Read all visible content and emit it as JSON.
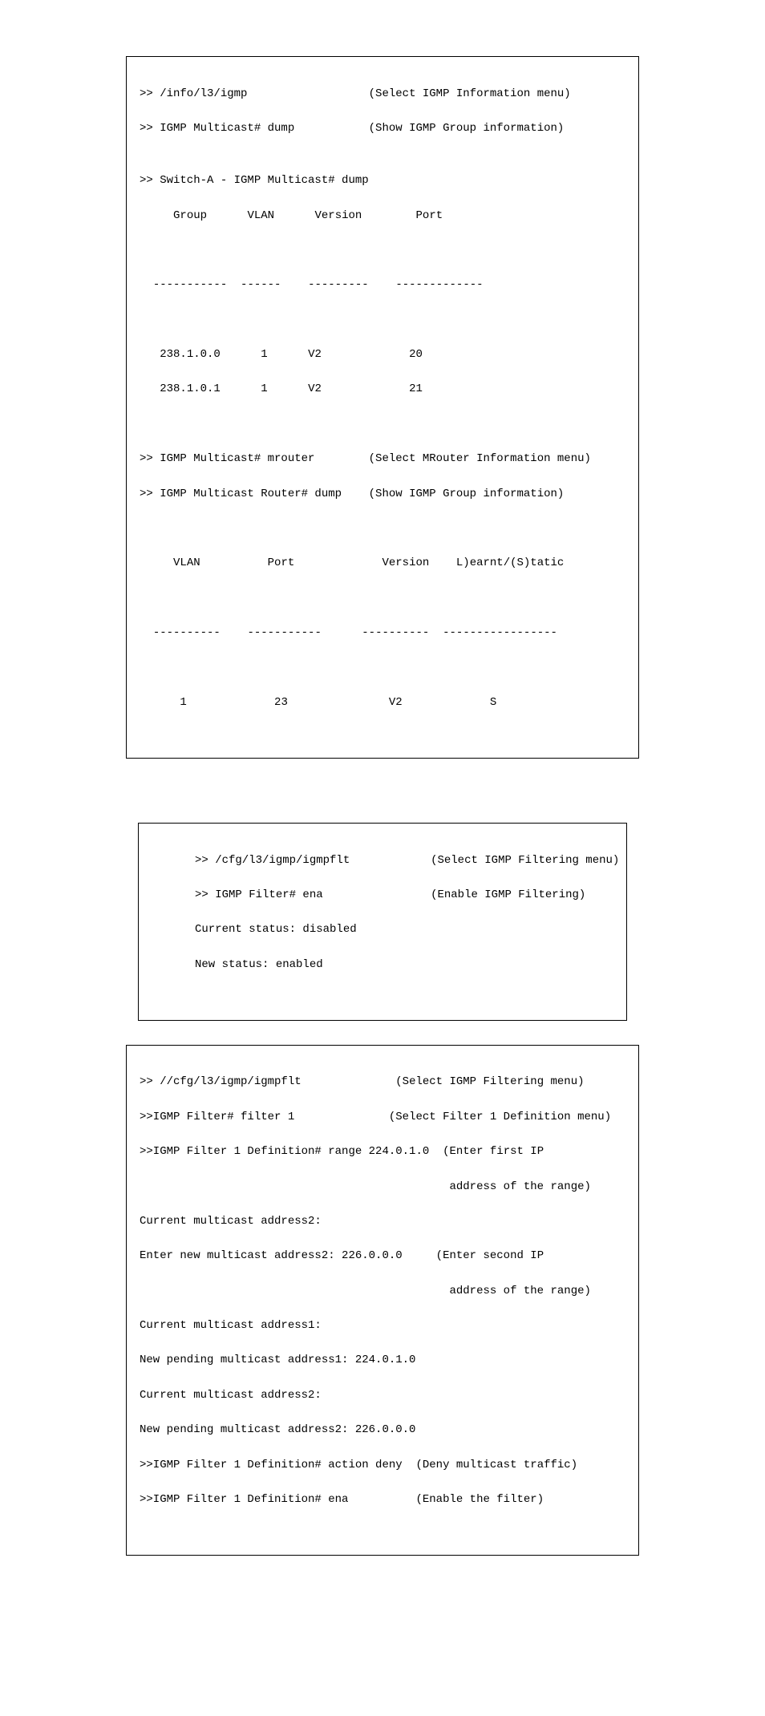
{
  "style": {
    "font_family": "Courier New, monospace",
    "font_size_pt": 11,
    "text_color": "#000000",
    "border_color": "#000000",
    "background_color": "#ffffff"
  },
  "block1": {
    "l1_left": ">> /info/l3/igmp",
    "l1_right": "(Select IGMP Information menu)",
    "l2_left": ">> IGMP Multicast# dump",
    "l2_right": "(Show IGMP Group information)",
    "l3": "",
    "l4": ">> Switch-A - IGMP Multicast# dump",
    "hdr_group": "Group",
    "hdr_vlan": "VLAN",
    "hdr_version": "Version",
    "hdr_port": "Port",
    "sep1_a": "-----------",
    "sep1_b": "------",
    "sep1_c": "---------",
    "sep1_d": "-------------",
    "row1_group": "238.1.0.0",
    "row1_vlan": "1",
    "row1_version": "V2",
    "row1_port": "20",
    "row2_group": "238.1.0.1",
    "row2_vlan": "1",
    "row2_version": "V2",
    "row2_port": "21",
    "l_mrouter_left": ">> IGMP Multicast# mrouter",
    "l_mrouter_right": "(Select MRouter Information menu)",
    "l_router_dump_left": ">> IGMP Multicast Router# dump",
    "l_router_dump_right": "(Show IGMP Group information)",
    "hdr2_vlan": "VLAN",
    "hdr2_port": "Port",
    "hdr2_version": "Version",
    "hdr2_ls": "L)earnt/(S)tatic",
    "sep2_a": "----------",
    "sep2_b": "-----------",
    "sep2_c": "----------",
    "sep2_d": "-----------------",
    "r2_vlan": "1",
    "r2_port": "23",
    "r2_version": "V2",
    "r2_ls": "S"
  },
  "block2": {
    "l1_left": ">> /cfg/l3/igmp/igmpflt",
    "l1_right": "(Select IGMP Filtering menu)",
    "l2_left": ">> IGMP Filter# ena",
    "l2_right": "(Enable IGMP Filtering)",
    "l3": "Current status: disabled",
    "l4": "New status: enabled"
  },
  "block3": {
    "l1_left": ">> //cfg/l3/igmp/igmpflt",
    "l1_right": "(Select IGMP Filtering menu)",
    "l2_left": ">>IGMP Filter# filter 1",
    "l2_right": "(Select Filter 1 Definition menu)",
    "l3_left": ">>IGMP Filter 1 Definition# range 224.0.1.0",
    "l3_right": "(Enter first IP",
    "l3b_right": "address of the range)",
    "l4": "Current multicast address2:",
    "l5_left": "Enter new multicast address2: 226.0.0.0",
    "l5_right": "(Enter second IP",
    "l5b_right": "address of the range)",
    "l6": "Current multicast address1:",
    "l7": "New pending multicast address1: 224.0.1.0",
    "l8": "Current multicast address2:",
    "l9": "New pending multicast address2: 226.0.0.0",
    "l10_left": ">>IGMP Filter 1 Definition# action deny",
    "l10_right": "(Deny multicast traffic)",
    "l11_left": ">>IGMP Filter 1 Definition# ena",
    "l11_right": "(Enable the filter)"
  }
}
